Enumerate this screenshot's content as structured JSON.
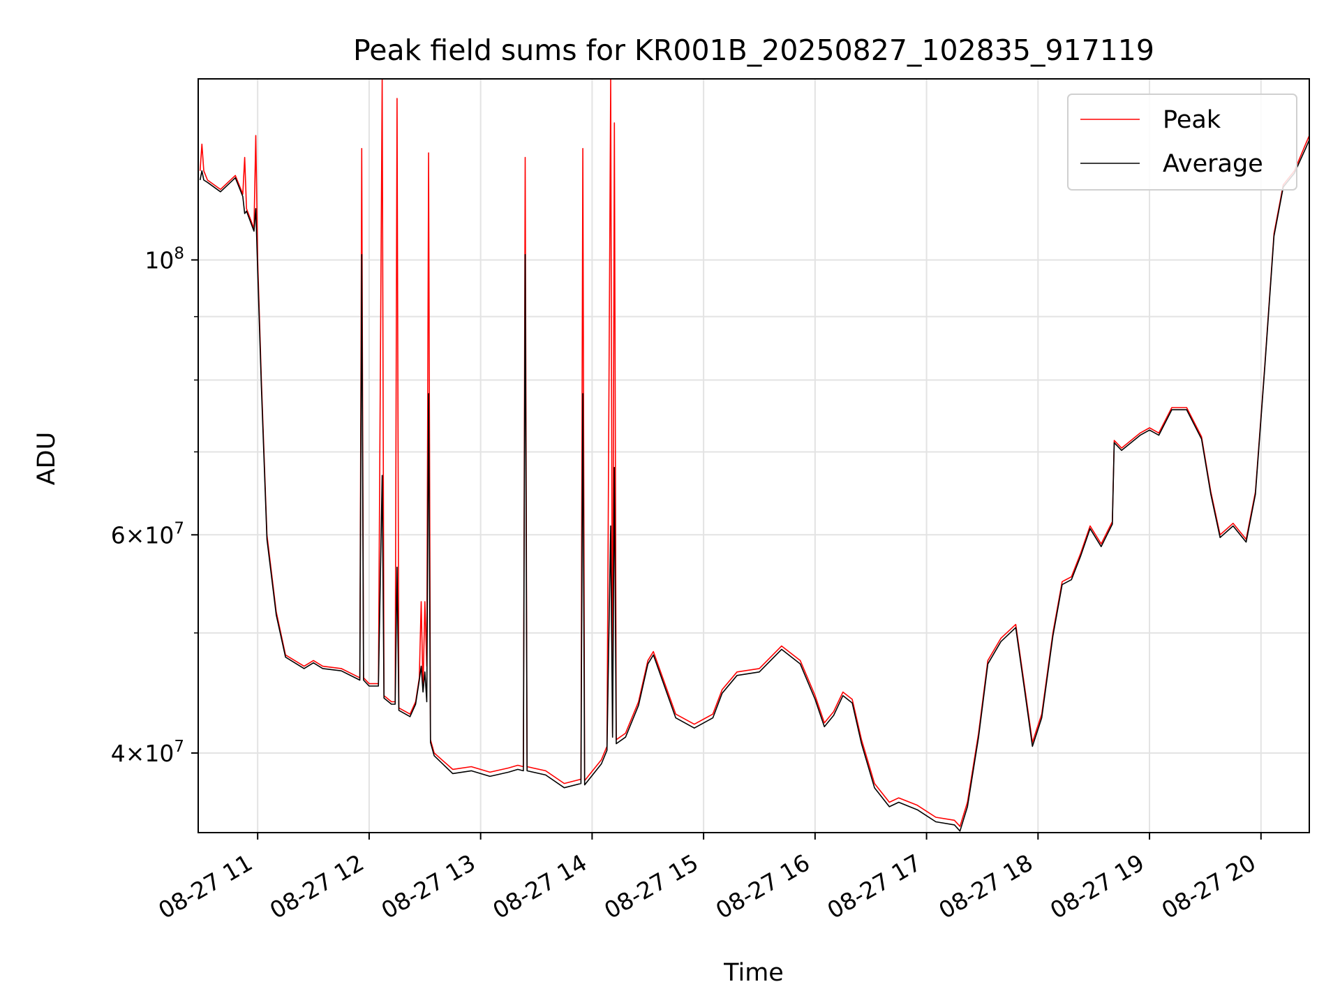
{
  "chart_data": {
    "type": "line",
    "title": "Peak field sums for KR001B_20250827_102835_917119",
    "xlabel": "Time",
    "ylabel": "ADU",
    "yscale": "log",
    "grid": true,
    "legend_position": "upper right",
    "xlim": [
      "2025-08-27 10:28",
      "2025-08-27 20:26"
    ],
    "ylim": [
      34500000,
      140000000
    ],
    "x_ticks": [
      "08-27 11",
      "08-27 12",
      "08-27 13",
      "08-27 14",
      "08-27 15",
      "08-27 16",
      "08-27 17",
      "08-27 18",
      "08-27 19",
      "08-27 20"
    ],
    "x_tick_hours": [
      11,
      12,
      13,
      14,
      15,
      16,
      17,
      18,
      19,
      20
    ],
    "y_ticks": [
      {
        "value": 100000000,
        "label": "10^8"
      },
      {
        "value": 60000000,
        "label": "6×10^7"
      },
      {
        "value": 40000000,
        "label": "4×10^7"
      }
    ],
    "y_minor_ticks": [
      30000000,
      50000000,
      70000000,
      80000000,
      90000000
    ],
    "series": [
      {
        "name": "Peak",
        "color": "#ff0000",
        "points": [
          [
            "10:29",
            118000000
          ],
          [
            "10:30",
            124000000
          ],
          [
            "10:31",
            118000000
          ],
          [
            "10:33",
            116000000
          ],
          [
            "10:40",
            114000000
          ],
          [
            "10:48",
            117000000
          ],
          [
            "10:52",
            113000000
          ],
          [
            "10:53",
            121000000
          ],
          [
            "10:54",
            110000000
          ],
          [
            "10:58",
            106000000
          ],
          [
            "10:59",
            126000000
          ],
          [
            "11:00",
            100000000
          ],
          [
            "11:02",
            80000000
          ],
          [
            "11:05",
            60000000
          ],
          [
            "11:10",
            52000000
          ],
          [
            "11:15",
            48000000
          ],
          [
            "11:25",
            47000000
          ],
          [
            "11:30",
            47500000
          ],
          [
            "11:35",
            47000000
          ],
          [
            "11:45",
            46800000
          ],
          [
            "11:55",
            46000000
          ],
          [
            "11:56",
            123000000
          ],
          [
            "11:57",
            46000000
          ],
          [
            "12:00",
            45500000
          ],
          [
            "12:05",
            45500000
          ],
          [
            "12:07",
            145000000
          ],
          [
            "12:08",
            44500000
          ],
          [
            "12:12",
            44000000
          ],
          [
            "12:14",
            44000000
          ],
          [
            "12:15",
            135000000
          ],
          [
            "12:16",
            43500000
          ],
          [
            "12:22",
            43000000
          ],
          [
            "12:25",
            44000000
          ],
          [
            "12:27",
            46000000
          ],
          [
            "12:28",
            53000000
          ],
          [
            "12:29",
            45000000
          ],
          [
            "12:30",
            53000000
          ],
          [
            "12:31",
            47000000
          ],
          [
            "12:32",
            122000000
          ],
          [
            "12:33",
            41000000
          ],
          [
            "12:35",
            40000000
          ],
          [
            "12:45",
            38800000
          ],
          [
            "12:55",
            39000000
          ],
          [
            "13:05",
            38600000
          ],
          [
            "13:15",
            38900000
          ],
          [
            "13:20",
            39100000
          ],
          [
            "13:23",
            39000000
          ],
          [
            "13:24",
            121000000
          ],
          [
            "13:25",
            39000000
          ],
          [
            "13:35",
            38700000
          ],
          [
            "13:45",
            37800000
          ],
          [
            "13:54",
            38100000
          ],
          [
            "13:55",
            123000000
          ],
          [
            "13:56",
            38000000
          ],
          [
            "14:05",
            39500000
          ],
          [
            "14:08",
            40500000
          ],
          [
            "14:10",
            141000000
          ],
          [
            "14:11",
            41500000
          ],
          [
            "14:12",
            129000000
          ],
          [
            "14:13",
            41000000
          ],
          [
            "14:18",
            41500000
          ],
          [
            "14:25",
            44000000
          ],
          [
            "14:30",
            47500000
          ],
          [
            "14:33",
            48300000
          ],
          [
            "14:38",
            46000000
          ],
          [
            "14:45",
            43000000
          ],
          [
            "14:55",
            42200000
          ],
          [
            "15:05",
            43000000
          ],
          [
            "15:10",
            45000000
          ],
          [
            "15:18",
            46500000
          ],
          [
            "15:30",
            46800000
          ],
          [
            "15:42",
            48800000
          ],
          [
            "15:52",
            47500000
          ],
          [
            "16:00",
            44500000
          ],
          [
            "16:05",
            42300000
          ],
          [
            "16:10",
            43200000
          ],
          [
            "16:15",
            44800000
          ],
          [
            "16:20",
            44200000
          ],
          [
            "16:25",
            41000000
          ],
          [
            "16:32",
            37800000
          ],
          [
            "16:40",
            36500000
          ],
          [
            "16:45",
            36800000
          ],
          [
            "16:55",
            36300000
          ],
          [
            "17:05",
            35500000
          ],
          [
            "17:15",
            35300000
          ],
          [
            "17:18",
            34900000
          ],
          [
            "17:22",
            36500000
          ],
          [
            "17:28",
            41500000
          ],
          [
            "17:33",
            47500000
          ],
          [
            "17:40",
            49500000
          ],
          [
            "17:48",
            50800000
          ],
          [
            "17:53",
            45000000
          ],
          [
            "17:57",
            40800000
          ],
          [
            "18:02",
            43000000
          ],
          [
            "18:08",
            50000000
          ],
          [
            "18:13",
            55000000
          ],
          [
            "18:18",
            55500000
          ],
          [
            "18:23",
            58000000
          ],
          [
            "18:28",
            61000000
          ],
          [
            "18:34",
            59000000
          ],
          [
            "18:40",
            61500000
          ],
          [
            "18:41",
            71500000
          ],
          [
            "18:45",
            70500000
          ],
          [
            "18:55",
            72500000
          ],
          [
            "19:00",
            73200000
          ],
          [
            "19:05",
            72500000
          ],
          [
            "19:12",
            76000000
          ],
          [
            "19:20",
            76000000
          ],
          [
            "19:28",
            72000000
          ],
          [
            "19:33",
            65000000
          ],
          [
            "19:38",
            60000000
          ],
          [
            "19:45",
            61300000
          ],
          [
            "19:52",
            59500000
          ],
          [
            "19:57",
            65000000
          ],
          [
            "20:02",
            82000000
          ],
          [
            "20:07",
            105000000
          ],
          [
            "20:12",
            115000000
          ],
          [
            "20:18",
            118000000
          ],
          [
            "20:24",
            124000000
          ],
          [
            "20:26",
            126000000
          ]
        ]
      },
      {
        "name": "Average",
        "color": "#000000",
        "points": [
          [
            "10:29",
            116000000
          ],
          [
            "10:30",
            118000000
          ],
          [
            "10:31",
            116000000
          ],
          [
            "10:33",
            115500000
          ],
          [
            "10:40",
            113500000
          ],
          [
            "10:48",
            116500000
          ],
          [
            "10:52",
            112500000
          ],
          [
            "10:53",
            109000000
          ],
          [
            "10:54",
            109500000
          ],
          [
            "10:58",
            105500000
          ],
          [
            "10:59",
            110000000
          ],
          [
            "11:00",
            98000000
          ],
          [
            "11:02",
            79000000
          ],
          [
            "11:05",
            59500000
          ],
          [
            "11:10",
            51700000
          ],
          [
            "11:15",
            47800000
          ],
          [
            "11:25",
            46800000
          ],
          [
            "11:30",
            47300000
          ],
          [
            "11:35",
            46800000
          ],
          [
            "11:45",
            46600000
          ],
          [
            "11:55",
            45800000
          ],
          [
            "11:56",
            101000000
          ],
          [
            "11:57",
            45800000
          ],
          [
            "12:00",
            45300000
          ],
          [
            "12:05",
            45300000
          ],
          [
            "12:07",
            67000000
          ],
          [
            "12:08",
            44300000
          ],
          [
            "12:12",
            43800000
          ],
          [
            "12:14",
            43800000
          ],
          [
            "12:15",
            56500000
          ],
          [
            "12:16",
            43300000
          ],
          [
            "12:22",
            42800000
          ],
          [
            "12:25",
            43800000
          ],
          [
            "12:27",
            45800000
          ],
          [
            "12:28",
            47000000
          ],
          [
            "12:29",
            44800000
          ],
          [
            "12:30",
            46500000
          ],
          [
            "12:31",
            44000000
          ],
          [
            "12:32",
            78000000
          ],
          [
            "12:33",
            40800000
          ],
          [
            "12:35",
            39800000
          ],
          [
            "12:45",
            38500000
          ],
          [
            "12:55",
            38700000
          ],
          [
            "13:05",
            38300000
          ],
          [
            "13:15",
            38600000
          ],
          [
            "13:20",
            38800000
          ],
          [
            "13:23",
            38700000
          ],
          [
            "13:24",
            101000000
          ],
          [
            "13:25",
            38700000
          ],
          [
            "13:35",
            38400000
          ],
          [
            "13:45",
            37500000
          ],
          [
            "13:54",
            37800000
          ],
          [
            "13:55",
            78000000
          ],
          [
            "13:56",
            37700000
          ],
          [
            "14:05",
            39200000
          ],
          [
            "14:08",
            40200000
          ],
          [
            "14:10",
            61000000
          ],
          [
            "14:11",
            41200000
          ],
          [
            "14:12",
            68000000
          ],
          [
            "14:13",
            40700000
          ],
          [
            "14:18",
            41200000
          ],
          [
            "14:25",
            43700000
          ],
          [
            "14:30",
            47200000
          ],
          [
            "14:33",
            48000000
          ],
          [
            "14:38",
            45700000
          ],
          [
            "14:45",
            42700000
          ],
          [
            "14:55",
            41900000
          ],
          [
            "15:05",
            42700000
          ],
          [
            "15:10",
            44700000
          ],
          [
            "15:18",
            46200000
          ],
          [
            "15:30",
            46500000
          ],
          [
            "15:42",
            48500000
          ],
          [
            "15:52",
            47200000
          ],
          [
            "16:00",
            44200000
          ],
          [
            "16:05",
            42000000
          ],
          [
            "16:10",
            42900000
          ],
          [
            "16:15",
            44500000
          ],
          [
            "16:20",
            43900000
          ],
          [
            "16:25",
            40700000
          ],
          [
            "16:32",
            37500000
          ],
          [
            "16:40",
            36200000
          ],
          [
            "16:45",
            36500000
          ],
          [
            "16:55",
            36000000
          ],
          [
            "17:05",
            35200000
          ],
          [
            "17:15",
            35000000
          ],
          [
            "17:18",
            34600000
          ],
          [
            "17:22",
            36200000
          ],
          [
            "17:28",
            41200000
          ],
          [
            "17:33",
            47200000
          ],
          [
            "17:40",
            49200000
          ],
          [
            "17:48",
            50500000
          ],
          [
            "17:53",
            44700000
          ],
          [
            "17:57",
            40500000
          ],
          [
            "18:02",
            42700000
          ],
          [
            "18:08",
            49700000
          ],
          [
            "18:13",
            54700000
          ],
          [
            "18:18",
            55200000
          ],
          [
            "18:23",
            57700000
          ],
          [
            "18:28",
            60700000
          ],
          [
            "18:34",
            58700000
          ],
          [
            "18:40",
            61200000
          ],
          [
            "18:41",
            71200000
          ],
          [
            "18:45",
            70200000
          ],
          [
            "18:55",
            72200000
          ],
          [
            "19:00",
            72900000
          ],
          [
            "19:05",
            72200000
          ],
          [
            "19:12",
            75700000
          ],
          [
            "19:20",
            75700000
          ],
          [
            "19:28",
            71700000
          ],
          [
            "19:33",
            64700000
          ],
          [
            "19:38",
            59700000
          ],
          [
            "19:45",
            61000000
          ],
          [
            "19:52",
            59200000
          ],
          [
            "19:57",
            64700000
          ],
          [
            "20:02",
            81700000
          ],
          [
            "20:07",
            104500000
          ],
          [
            "20:12",
            114500000
          ],
          [
            "20:18",
            117500000
          ],
          [
            "20:24",
            123000000
          ],
          [
            "20:26",
            125000000
          ]
        ]
      }
    ]
  }
}
